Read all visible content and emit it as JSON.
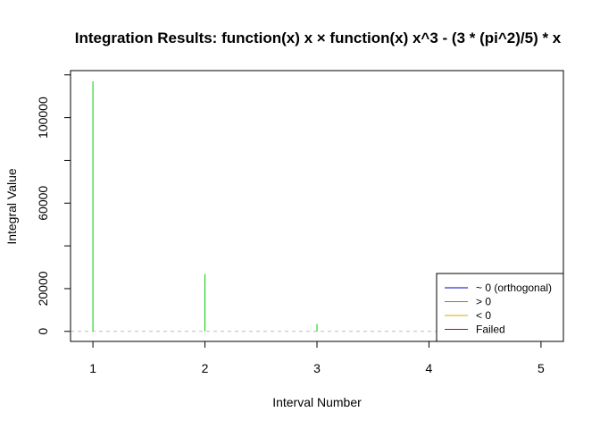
{
  "chart_data": {
    "type": "bar",
    "title": "Integration Results: function(x) x × function(x) x^3 - (3 * (pi^2)/5) * x",
    "xlabel": "Interval Number",
    "ylabel": "Integral Value",
    "x": [
      1,
      2,
      3,
      4,
      5
    ],
    "values": [
      117000,
      26800,
      3400,
      0,
      0
    ],
    "status": [
      "> 0",
      "> 0",
      "> 0",
      "~ 0 (orthogonal)",
      "~ 0 (orthogonal)"
    ],
    "xlim": [
      0.8,
      5.2
    ],
    "ylim": [
      -4700,
      122000
    ],
    "x_ticks": [
      1,
      2,
      3,
      4,
      5
    ],
    "y_ticks": [
      0,
      20000,
      40000,
      60000,
      80000,
      100000,
      120000
    ],
    "y_tick_labels": [
      "0",
      "20000",
      "",
      "60000",
      "",
      "100000",
      ""
    ],
    "reference_line": {
      "y": 0,
      "style": "dashed",
      "color": "#bebebe"
    },
    "legend": {
      "position": "bottom-right",
      "items": [
        {
          "label": "~ 0 (orthogonal)",
          "color": "#0000cd"
        },
        {
          "label": "> 0",
          "color": "#00cd00"
        },
        {
          "label": "< 0",
          "color": "#cdad00"
        },
        {
          "label": "Failed",
          "color": "#cd0000"
        }
      ]
    },
    "grid": false
  }
}
